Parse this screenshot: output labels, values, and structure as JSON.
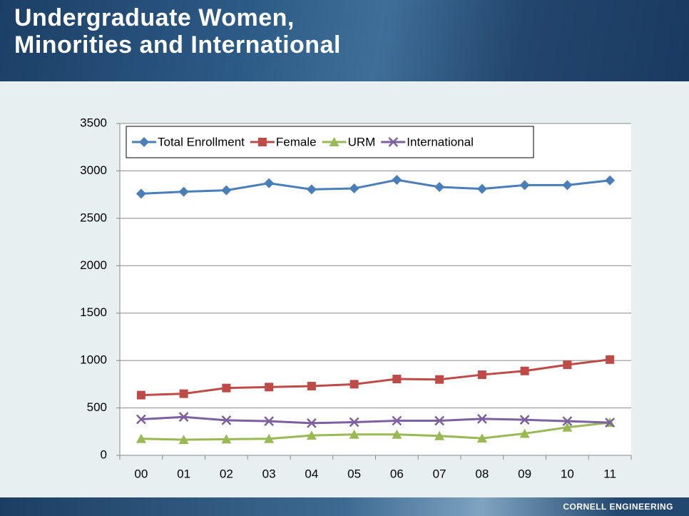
{
  "header": {
    "title_lines": [
      "Undergraduate Women,",
      "Minorities and International"
    ]
  },
  "footer": {
    "text": "CORNELL ENGINEERING"
  },
  "chart_data": {
    "type": "line",
    "categories": [
      "00",
      "01",
      "02",
      "03",
      "04",
      "05",
      "06",
      "07",
      "08",
      "09",
      "10",
      "11"
    ],
    "series": [
      {
        "name": "Total Enrollment",
        "color": "#4a7ebb",
        "marker": "diamond",
        "values": [
          2760,
          2780,
          2795,
          2870,
          2805,
          2815,
          2905,
          2830,
          2810,
          2850,
          2850,
          2900
        ]
      },
      {
        "name": "Female",
        "color": "#be4b48",
        "marker": "square",
        "values": [
          635,
          650,
          710,
          720,
          730,
          750,
          805,
          800,
          850,
          890,
          955,
          1010
        ]
      },
      {
        "name": "URM",
        "color": "#98b954",
        "marker": "triangle",
        "values": [
          175,
          165,
          170,
          175,
          210,
          220,
          220,
          205,
          180,
          230,
          295,
          345
        ]
      },
      {
        "name": "International",
        "color": "#7d60a0",
        "marker": "x",
        "values": [
          380,
          405,
          370,
          360,
          340,
          350,
          365,
          365,
          385,
          375,
          360,
          345
        ]
      }
    ],
    "ylim": [
      0,
      3500
    ],
    "yticks": [
      0,
      500,
      1000,
      1500,
      2000,
      2500,
      3000,
      3500
    ],
    "grid": true,
    "legend": "top-left"
  }
}
